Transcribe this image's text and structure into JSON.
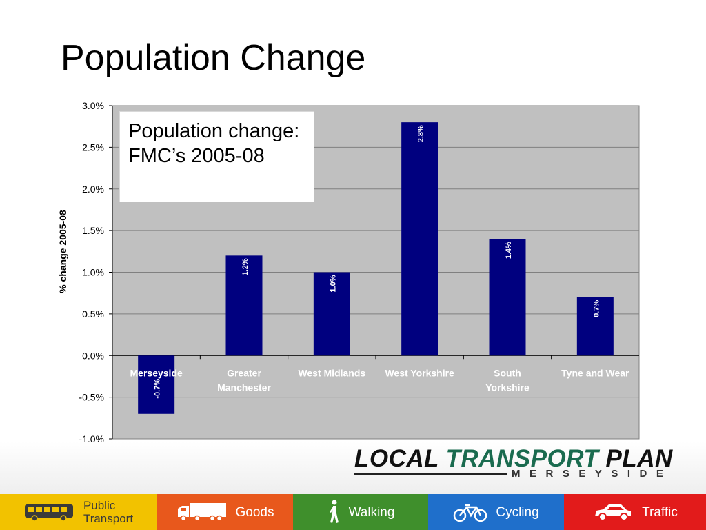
{
  "slide": {
    "title": "Population Change"
  },
  "callout": {
    "text": "Population change: FMC’s 2005-08"
  },
  "chart_data": {
    "type": "bar",
    "title": "",
    "ylabel": "% change 2005-08",
    "xlabel": "",
    "categories": [
      "Merseyside",
      "Greater Manchester",
      "West Midlands",
      "West Yorkshire",
      "South Yorkshire",
      "Tyne and Wear"
    ],
    "values": [
      -0.7,
      1.2,
      1.0,
      2.8,
      1.4,
      0.7
    ],
    "data_labels": [
      "-0.7%",
      "1.2%",
      "1.0%",
      "2.8%",
      "1.4%",
      "0.7%"
    ],
    "ylim": [
      -1.0,
      3.0
    ],
    "yticks": [
      -1.0,
      -0.5,
      0.0,
      0.5,
      1.0,
      1.5,
      2.0,
      2.5,
      3.0
    ],
    "ytick_labels": [
      "-1.0%",
      "-0.5%",
      "0.0%",
      "0.5%",
      "1.0%",
      "1.5%",
      "2.0%",
      "2.5%",
      "3.0%"
    ],
    "grid": true,
    "colors": {
      "bar": "#00007f",
      "plot_bg": "#c0c0c0",
      "grid": "#808080"
    }
  },
  "branding": {
    "word1": "LOCAL",
    "word2": "TRANSPORT",
    "word3": "PLAN",
    "subtitle": "MERSEYSIDE"
  },
  "footer": {
    "tiles": [
      {
        "label": "Public\nTransport",
        "icon": "bus-icon"
      },
      {
        "label": "Goods",
        "icon": "lorry-icon"
      },
      {
        "label": "Walking",
        "icon": "walking-person-icon"
      },
      {
        "label": "Cycling",
        "icon": "bicycle-icon"
      },
      {
        "label": "Traffic",
        "icon": "car-icon"
      }
    ]
  }
}
